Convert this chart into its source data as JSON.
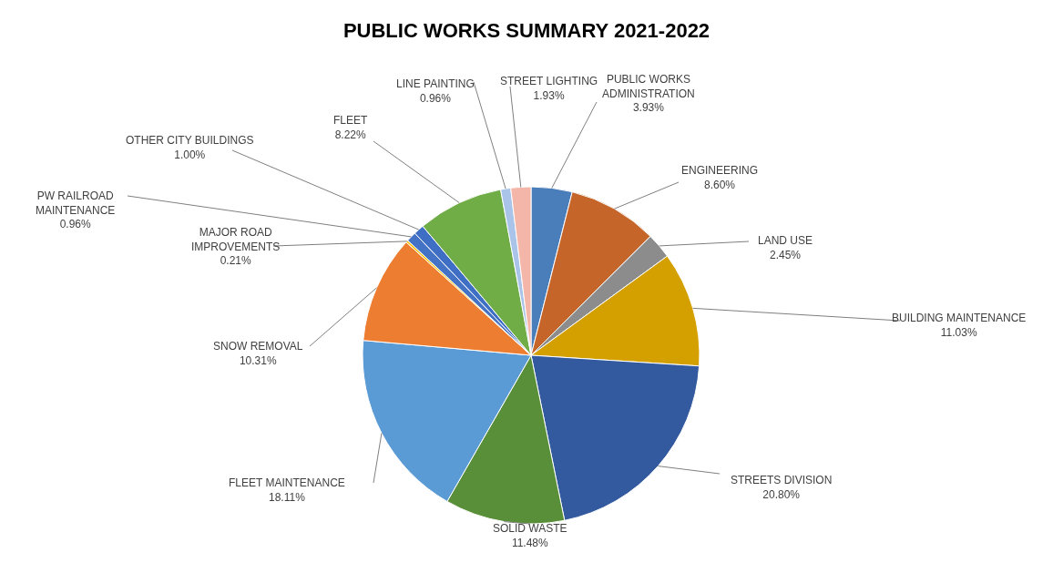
{
  "chart_data": {
    "type": "pie",
    "title": "PUBLIC WORKS SUMMARY 2021-2022",
    "categories": [
      "PUBLIC WORKS ADMINISTRATION",
      "ENGINEERING",
      "LAND USE",
      "BUILDING MAINTENANCE",
      "STREETS DIVISION",
      "SOLID WASTE",
      "FLEET MAINTENANCE",
      "SNOW REMOVAL",
      "MAJOR ROAD IMPROVEMENTS",
      "PW RAILROAD MAINTENANCE",
      "OTHER CITY BUILDINGS",
      "FLEET",
      "LINE PAINTING",
      "STREET LIGHTING"
    ],
    "values": [
      3.93,
      8.6,
      2.45,
      11.03,
      20.8,
      11.48,
      18.11,
      10.31,
      0.21,
      0.96,
      1.0,
      8.22,
      0.96,
      1.93
    ],
    "value_labels": [
      "3.93%",
      "8.60%",
      "2.45%",
      "11.03%",
      "20.80%",
      "11.48%",
      "18.11%",
      "10.31%",
      "0.21%",
      "0.96%",
      "1.00%",
      "8.22%",
      "0.96%",
      "1.93%"
    ],
    "colors": [
      "#4a7ebb",
      "#c5652a",
      "#8c8c8c",
      "#d4a000",
      "#335a9e",
      "#5a8f3a",
      "#5b9bd5",
      "#ed7d31",
      "#ffc000",
      "#4472c4",
      "#3f6fc4",
      "#70ad47",
      "#a9c4e8",
      "#f4b6a8"
    ],
    "legend": false
  }
}
